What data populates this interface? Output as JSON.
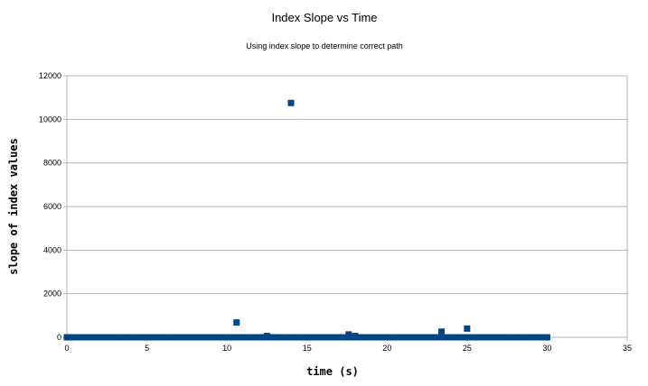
{
  "chart_data": {
    "type": "scatter",
    "title": "Index Slope vs Time",
    "subtitle": "Using index slope to determine correct path",
    "xlabel": "time (s)",
    "ylabel": "slope of index values",
    "xlim": [
      0,
      35
    ],
    "ylim": [
      0,
      12000
    ],
    "x_ticks": [
      0,
      5,
      10,
      15,
      20,
      25,
      30,
      35
    ],
    "y_ticks": [
      0,
      2000,
      4000,
      6000,
      8000,
      10000,
      12000
    ],
    "grid": "horizontal",
    "legend": "none",
    "marker": "square",
    "colors": {
      "series": "#004586",
      "grid": "#b3b3b3",
      "axis": "#b3b3b3"
    },
    "baseline": {
      "x_start": 0,
      "x_end": 30,
      "x_step": 0.1,
      "y": 0
    },
    "outliers": [
      {
        "x": 10.6,
        "y": 680
      },
      {
        "x": 12.5,
        "y": 60
      },
      {
        "x": 14.0,
        "y": 10750
      },
      {
        "x": 17.6,
        "y": 130
      },
      {
        "x": 18.0,
        "y": 60
      },
      {
        "x": 23.4,
        "y": 260
      },
      {
        "x": 25.0,
        "y": 400
      }
    ]
  }
}
